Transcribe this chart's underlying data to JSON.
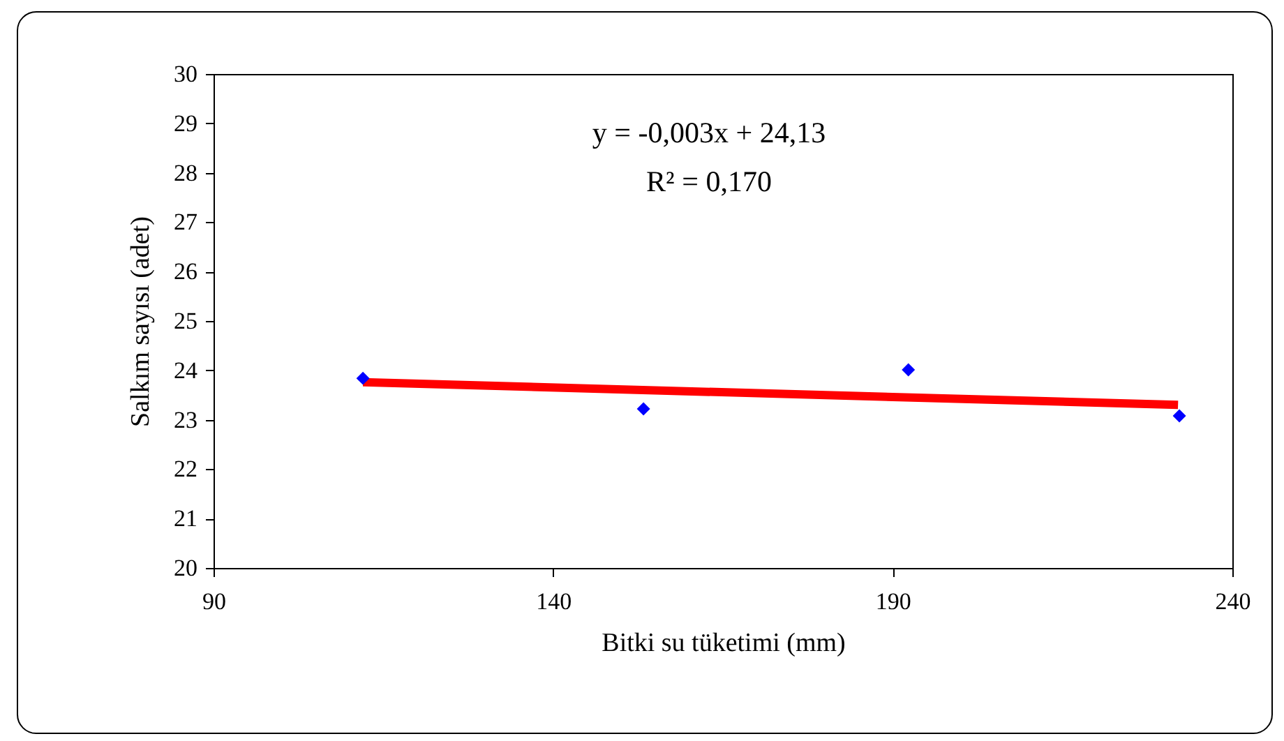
{
  "chart_data": {
    "type": "scatter",
    "xlabel": "Bitki su tüketimi (mm)",
    "ylabel": "Salkım sayısı (adet)",
    "annotations": [
      "y = -0,003x + 24,13",
      "R² = 0,170"
    ],
    "x": [
      112,
      153.3,
      192.3,
      232.2
    ],
    "series": [
      {
        "color": "#0000ff",
        "marker": "diamond",
        "values": [
          23.84,
          23.22,
          24.01,
          23.08
        ]
      },
      {
        "type": "line",
        "color": "#ff0000",
        "x": [
          112,
          232
        ],
        "values": [
          23.76,
          23.3
        ]
      }
    ],
    "xlim": [
      90,
      240
    ],
    "xticks": [
      90,
      140,
      190,
      240
    ],
    "ylim": [
      20,
      30
    ],
    "yticks": [
      20,
      21,
      22,
      23,
      24,
      25,
      26,
      27,
      28,
      29,
      30
    ],
    "grid": false,
    "line_style": "solid"
  }
}
